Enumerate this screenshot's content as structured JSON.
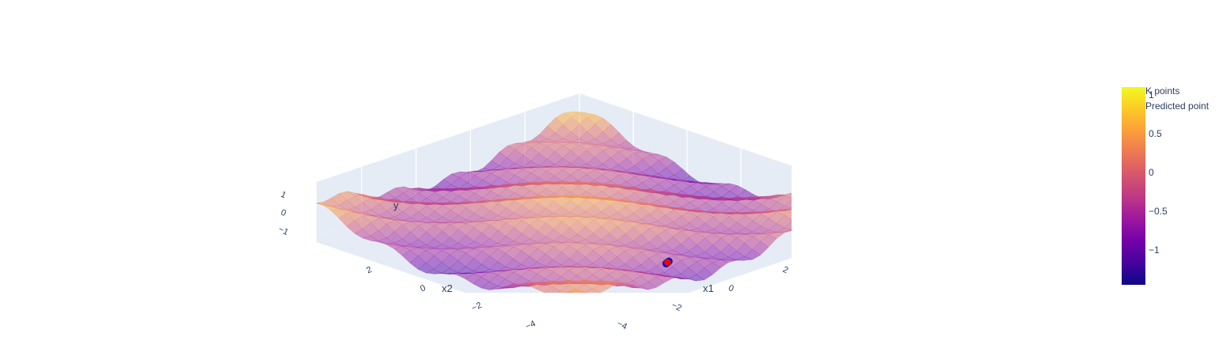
{
  "chart_data": {
    "type": "surface",
    "colorscale": [
      "#0d0887",
      "#46039f",
      "#7201a8",
      "#9c179e",
      "#bd3786",
      "#d8576b",
      "#ed7953",
      "#fb9f3a",
      "#fdca26",
      "#f0f921"
    ],
    "scene_bg": "#e5ecf6",
    "axes": {
      "x": {
        "title": "x1",
        "range": [
          -5,
          5
        ],
        "ticks": [
          "−4",
          "−2",
          "0",
          "2"
        ]
      },
      "y": {
        "title": "x2",
        "range": [
          -5,
          5
        ],
        "ticks": [
          "−4",
          "−2",
          "0",
          "2"
        ]
      },
      "z": {
        "title": "y",
        "range": [
          -1.5,
          1.5
        ],
        "ticks": [
          "−1",
          "0",
          "1"
        ]
      }
    },
    "colorbar": {
      "range": [
        -1.45,
        1.1
      ],
      "ticks": [
        {
          "value": -1,
          "label": "−1"
        },
        {
          "value": -0.5,
          "label": "−0.5"
        },
        {
          "value": 0,
          "label": "0"
        },
        {
          "value": 0.5,
          "label": "0.5"
        },
        {
          "value": 1,
          "label": "1"
        }
      ]
    },
    "legend": {
      "position": "top-right",
      "entries": [
        {
          "name": "K points",
          "color": "#0000ff"
        },
        {
          "name": "Predicted point",
          "color": "#ff0000"
        }
      ]
    },
    "points": [
      {
        "series": "K points",
        "x1": -1.6,
        "x2": -4.9,
        "y": 0.45,
        "color": "#0000ff"
      },
      {
        "series": "K points",
        "x1": -1.4,
        "x2": -4.8,
        "y": 0.42,
        "color": "#0000ff"
      },
      {
        "series": "Predicted point",
        "x1": -1.5,
        "x2": -4.85,
        "y": 0.44,
        "color": "#ff0000"
      }
    ]
  }
}
